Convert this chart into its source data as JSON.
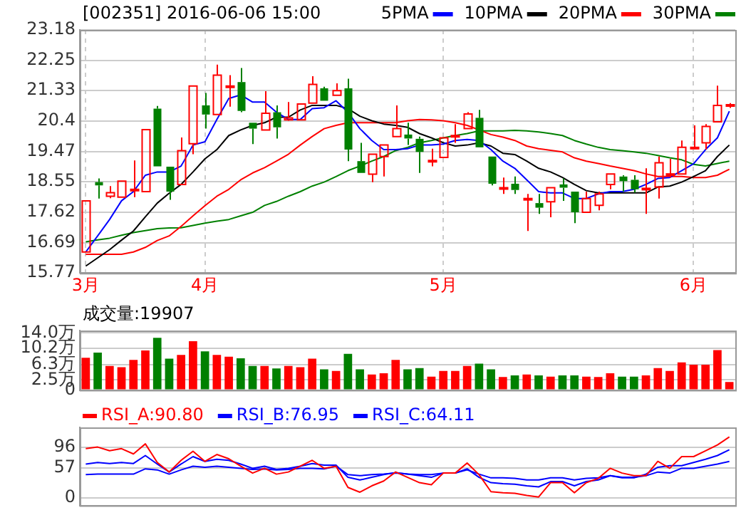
{
  "chart_data": [
    {
      "type": "candlestick",
      "title": "[002351] 2016-06-06 15:00",
      "legend": "top right",
      "grid": true,
      "marker": "none",
      "categories": [
        "3月",
        null,
        null,
        null,
        null,
        null,
        null,
        null,
        null,
        null,
        "4月",
        null,
        null,
        null,
        null,
        null,
        null,
        null,
        null,
        null,
        null,
        null,
        null,
        null,
        null,
        null,
        null,
        null,
        null,
        null,
        "5月",
        null,
        null,
        null,
        null,
        null,
        null,
        null,
        null,
        null,
        null,
        null,
        null,
        null,
        null,
        null,
        null,
        null,
        null,
        null,
        null,
        "6月",
        null,
        null,
        null
      ],
      "ylim": [
        15.77,
        23.18
      ],
      "yticks": [
        15.77,
        16.69,
        17.62,
        18.55,
        19.47,
        20.4,
        21.33,
        22.25,
        23.18
      ],
      "ohlc": [
        [
          16.41,
          17.97,
          16.41,
          17.97
        ],
        [
          18.54,
          18.65,
          18.04,
          18.44
        ],
        [
          18.11,
          18.42,
          18.05,
          18.22
        ],
        [
          18.08,
          18.57,
          18.08,
          18.57
        ],
        [
          18.3,
          19.2,
          18.08,
          18.32
        ],
        [
          18.25,
          20.14,
          18.25,
          20.14
        ],
        [
          20.78,
          20.86,
          19.02,
          19.02
        ],
        [
          19.01,
          19.01,
          18.0,
          18.25
        ],
        [
          18.47,
          19.9,
          18.47,
          19.5
        ],
        [
          19.71,
          21.47,
          19.39,
          21.47
        ],
        [
          20.88,
          21.26,
          20.17,
          20.6
        ],
        [
          20.6,
          22.12,
          20.6,
          21.8
        ],
        [
          21.45,
          21.8,
          20.84,
          21.47
        ],
        [
          21.59,
          22.02,
          20.67,
          20.71
        ],
        [
          20.35,
          20.35,
          19.7,
          20.17
        ],
        [
          20.13,
          21.31,
          20.13,
          20.64
        ],
        [
          20.67,
          20.88,
          19.87,
          20.21
        ],
        [
          20.44,
          20.98,
          20.41,
          20.5
        ],
        [
          20.44,
          20.92,
          20.44,
          20.92
        ],
        [
          20.95,
          21.77,
          20.95,
          21.52
        ],
        [
          21.4,
          21.45,
          21.02,
          21.02
        ],
        [
          21.19,
          21.55,
          21.19,
          21.33
        ],
        [
          21.4,
          21.69,
          19.18,
          19.53
        ],
        [
          19.18,
          19.74,
          18.82,
          18.82
        ],
        [
          18.78,
          19.39,
          18.54,
          19.39
        ],
        [
          19.32,
          19.67,
          18.71,
          19.67
        ],
        [
          19.93,
          20.88,
          19.93,
          20.17
        ],
        [
          19.99,
          20.35,
          19.67,
          19.87
        ],
        [
          19.86,
          19.93,
          18.82,
          19.46
        ],
        [
          19.18,
          19.56,
          19.02,
          19.2
        ],
        [
          19.29,
          19.89,
          19.29,
          19.89
        ],
        [
          19.94,
          20.31,
          19.74,
          19.96
        ],
        [
          20.17,
          20.67,
          20.17,
          20.62
        ],
        [
          20.5,
          20.74,
          19.6,
          19.6
        ],
        [
          19.32,
          19.32,
          18.44,
          18.49
        ],
        [
          18.35,
          18.68,
          18.18,
          18.37
        ],
        [
          18.49,
          18.71,
          18.18,
          18.3
        ],
        [
          18.03,
          18.18,
          17.05,
          18.04
        ],
        [
          17.9,
          18.18,
          17.57,
          17.76
        ],
        [
          17.94,
          18.37,
          17.47,
          18.37
        ],
        [
          18.47,
          18.65,
          17.97,
          18.37
        ],
        [
          18.25,
          18.25,
          17.29,
          17.62
        ],
        [
          17.62,
          18.25,
          17.62,
          18.04
        ],
        [
          17.83,
          18.25,
          17.68,
          18.18
        ],
        [
          18.47,
          18.79,
          18.32,
          18.79
        ],
        [
          18.71,
          18.75,
          18.25,
          18.57
        ],
        [
          18.61,
          18.75,
          18.22,
          18.32
        ],
        [
          18.33,
          18.96,
          17.57,
          18.35
        ],
        [
          18.39,
          19.32,
          18.04,
          19.13
        ],
        [
          18.77,
          19.25,
          18.68,
          18.79
        ],
        [
          18.79,
          19.81,
          18.79,
          19.6
        ],
        [
          19.58,
          20.27,
          19.58,
          19.6
        ],
        [
          19.74,
          20.31,
          19.53,
          20.24
        ],
        [
          20.38,
          21.48,
          20.38,
          20.88
        ],
        [
          20.88,
          20.95,
          20.8,
          20.9
        ]
      ],
      "colors": [
        "#ff0000",
        "#008000",
        "#ff0000",
        "#ff0000",
        "#ff0000",
        "#ff0000",
        "#008000",
        "#008000",
        "#ff0000",
        "#ff0000",
        "#008000",
        "#ff0000",
        "#ff0000",
        "#008000",
        "#008000",
        "#ff0000",
        "#008000",
        "#ff0000",
        "#ff0000",
        "#ff0000",
        "#008000",
        "#ff0000",
        "#008000",
        "#008000",
        "#ff0000",
        "#ff0000",
        "#ff0000",
        "#008000",
        "#008000",
        "#ff0000",
        "#ff0000",
        "#ff0000",
        "#ff0000",
        "#008000",
        "#008000",
        "#ff0000",
        "#008000",
        "#ff0000",
        "#008000",
        "#ff0000",
        "#008000",
        "#008000",
        "#ff0000",
        "#ff0000",
        "#ff0000",
        "#008000",
        "#008000",
        "#ff0000",
        "#ff0000",
        "#ff0000",
        "#ff0000",
        "#ff0000",
        "#ff0000",
        "#ff0000",
        "#ff0000"
      ],
      "series": [
        {
          "name": "5PMA",
          "type": "line",
          "color": "#0000ff",
          "values": [
            16.41,
            16.9,
            17.4,
            17.97,
            18.25,
            18.75,
            18.85,
            18.85,
            19.03,
            19.67,
            19.77,
            20.45,
            21.09,
            21.2,
            20.98,
            20.98,
            20.67,
            20.45,
            20.45,
            20.78,
            20.81,
            21.02,
            20.67,
            20.17,
            19.81,
            19.53,
            19.53,
            19.56,
            19.67,
            19.67,
            19.7,
            19.81,
            19.84,
            19.81,
            19.53,
            19.18,
            18.96,
            18.61,
            18.25,
            18.21,
            18.21,
            18.04,
            18.04,
            18.18,
            18.25,
            18.25,
            18.32,
            18.47,
            18.65,
            18.68,
            18.89,
            19.1,
            19.53,
            19.89,
            20.7
          ]
        },
        {
          "name": "10PMA",
          "type": "line",
          "color": "#000000",
          "values": [
            15.98,
            16.23,
            16.48,
            16.77,
            17.05,
            17.48,
            17.9,
            18.2,
            18.47,
            18.85,
            19.25,
            19.53,
            19.96,
            20.13,
            20.27,
            20.35,
            20.52,
            20.52,
            20.74,
            20.88,
            20.88,
            20.88,
            20.78,
            20.55,
            20.41,
            20.31,
            20.27,
            20.21,
            20.02,
            19.89,
            19.74,
            19.64,
            19.67,
            19.74,
            19.64,
            19.42,
            19.38,
            19.18,
            18.96,
            18.85,
            18.68,
            18.47,
            18.28,
            18.21,
            18.21,
            18.21,
            18.21,
            18.21,
            18.39,
            18.42,
            18.54,
            18.71,
            18.89,
            19.32,
            19.67
          ]
        },
        {
          "name": "20PMA",
          "type": "line",
          "color": "#ff0000",
          "values": [
            16.34,
            16.34,
            16.34,
            16.34,
            16.41,
            16.55,
            16.76,
            16.9,
            17.19,
            17.51,
            17.82,
            18.11,
            18.32,
            18.61,
            18.82,
            18.98,
            19.18,
            19.39,
            19.67,
            19.93,
            20.17,
            20.27,
            20.35,
            20.35,
            20.35,
            20.35,
            20.35,
            20.41,
            20.45,
            20.44,
            20.41,
            20.35,
            20.27,
            20.13,
            19.99,
            19.91,
            19.81,
            19.64,
            19.56,
            19.51,
            19.46,
            19.28,
            19.18,
            19.11,
            19.03,
            18.96,
            18.89,
            18.79,
            18.71,
            18.71,
            18.71,
            18.68,
            18.68,
            18.75,
            18.93
          ]
        },
        {
          "name": "30PMA",
          "type": "line",
          "color": "#008000",
          "values": [
            16.72,
            16.78,
            16.83,
            16.92,
            17.0,
            17.06,
            17.12,
            17.14,
            17.15,
            17.22,
            17.29,
            17.35,
            17.4,
            17.51,
            17.62,
            17.83,
            17.95,
            18.11,
            18.25,
            18.42,
            18.54,
            18.71,
            18.89,
            19.03,
            19.18,
            19.32,
            19.5,
            19.6,
            19.74,
            19.81,
            19.89,
            19.96,
            20.02,
            20.1,
            20.1,
            20.1,
            20.12,
            20.1,
            20.07,
            20.02,
            19.96,
            19.81,
            19.7,
            19.6,
            19.53,
            19.5,
            19.46,
            19.42,
            19.35,
            19.28,
            19.22,
            19.08,
            19.03,
            19.11,
            19.18
          ]
        }
      ]
    },
    {
      "type": "bar",
      "title": "成交量:19907",
      "grid": "y",
      "tick_labels": "y",
      "categories": [
        null,
        null,
        null,
        null,
        null,
        null,
        null,
        null,
        null,
        null,
        null,
        null,
        null,
        null,
        null,
        null,
        null,
        null,
        null,
        null,
        null,
        null,
        null,
        null,
        null,
        null,
        null,
        null,
        null,
        null,
        null,
        null,
        null,
        null,
        null,
        null,
        null,
        null,
        null,
        null,
        null,
        null,
        null,
        null,
        null,
        null,
        null,
        null,
        null,
        null,
        null,
        null,
        null,
        null,
        null
      ],
      "ylim": [
        0,
        14.6
      ],
      "yticks": [
        0,
        {
          "value": 2.5,
          "label": "2.5万"
        },
        {
          "value": 6.3,
          "label": "6.3万"
        },
        {
          "value": 10.2,
          "label": "10.2万"
        },
        {
          "value": 14.0,
          "label": "14.0万"
        }
      ],
      "values": [
        7.9,
        9.2,
        5.9,
        5.6,
        7.4,
        9.7,
        12.8,
        7.7,
        8.6,
        12.0,
        9.5,
        8.6,
        8.2,
        7.8,
        5.9,
        5.9,
        5.3,
        5.9,
        5.6,
        7.7,
        5.1,
        4.7,
        8.9,
        5.1,
        3.8,
        4.1,
        7.4,
        5.1,
        5.4,
        3.3,
        4.7,
        4.7,
        5.9,
        6.5,
        5.1,
        3.2,
        3.6,
        3.8,
        3.6,
        3.3,
        3.6,
        3.6,
        3.3,
        3.2,
        4.1,
        3.3,
        3.3,
        3.6,
        5.4,
        4.7,
        6.8,
        6.2,
        6.2,
        9.8,
        1.99
      ],
      "colors": [
        "#ff0000",
        "#008000",
        "#ff0000",
        "#ff0000",
        "#ff0000",
        "#ff0000",
        "#008000",
        "#008000",
        "#ff0000",
        "#ff0000",
        "#008000",
        "#ff0000",
        "#ff0000",
        "#008000",
        "#008000",
        "#ff0000",
        "#008000",
        "#ff0000",
        "#ff0000",
        "#ff0000",
        "#008000",
        "#ff0000",
        "#008000",
        "#008000",
        "#ff0000",
        "#ff0000",
        "#ff0000",
        "#008000",
        "#008000",
        "#ff0000",
        "#ff0000",
        "#ff0000",
        "#ff0000",
        "#008000",
        "#008000",
        "#ff0000",
        "#008000",
        "#ff0000",
        "#008000",
        "#ff0000",
        "#008000",
        "#008000",
        "#ff0000",
        "#ff0000",
        "#ff0000",
        "#008000",
        "#008000",
        "#ff0000",
        "#ff0000",
        "#ff0000",
        "#ff0000",
        "#ff0000",
        "#ff0000",
        "#ff0000",
        "#ff0000"
      ]
    },
    {
      "type": "line",
      "legend": "top left",
      "grid": "y",
      "tick_labels": "y",
      "marker": "none",
      "categories": [
        null,
        null,
        null,
        null,
        null,
        null,
        null,
        null,
        null,
        null,
        null,
        null,
        null,
        null,
        null,
        null,
        null,
        null,
        null,
        null,
        null,
        null,
        null,
        null,
        null,
        null,
        null,
        null,
        null,
        null,
        null,
        null,
        null,
        null,
        null,
        null,
        null,
        null,
        null,
        null,
        null,
        null,
        null,
        null,
        null,
        null,
        null,
        null,
        null,
        null,
        null,
        null,
        null,
        null,
        null
      ],
      "ylim": [
        -14,
        133
      ],
      "yticks": [
        0,
        57,
        96
      ],
      "series": [
        {
          "name": "RSI_A:90.80",
          "color": "#ff0000",
          "values": [
            93,
            96,
            89,
            93,
            83,
            102,
            67,
            49,
            71,
            88,
            69,
            82,
            74,
            60,
            47,
            56,
            45,
            49,
            60,
            71,
            56,
            60,
            20,
            11,
            23,
            32,
            49,
            39,
            29,
            25,
            47,
            47,
            66,
            44,
            12,
            10,
            9,
            5,
            2,
            29,
            29,
            10,
            29,
            37,
            56,
            47,
            42,
            42,
            69,
            56,
            78,
            78,
            89,
            100,
            115
          ]
        },
        {
          "name": "RSI_B:76.95",
          "color": "#0000ff",
          "values": [
            64,
            67,
            65,
            67,
            65,
            80,
            64,
            49,
            64,
            78,
            69,
            73,
            71,
            64,
            56,
            60,
            54,
            56,
            60,
            65,
            62,
            62,
            39,
            34,
            39,
            44,
            48,
            45,
            42,
            39,
            47,
            47,
            55,
            39,
            29,
            27,
            26,
            23,
            21,
            31,
            31,
            23,
            31,
            34,
            42,
            38,
            38,
            45,
            58,
            61,
            61,
            67,
            73,
            80,
            91
          ]
        },
        {
          "name": "RSI_C:64.11",
          "color": "#0000ff",
          "values": [
            44,
            45,
            45,
            45,
            45,
            55,
            53,
            45,
            53,
            60,
            58,
            60,
            58,
            56,
            54,
            55,
            53,
            54,
            56,
            56,
            55,
            60,
            44,
            42,
            44,
            45,
            47,
            45,
            44,
            44,
            47,
            47,
            53,
            45,
            38,
            38,
            37,
            34,
            34,
            38,
            38,
            34,
            37,
            38,
            42,
            39,
            39,
            42,
            49,
            47,
            56,
            56,
            60,
            64,
            69
          ]
        }
      ]
    }
  ]
}
